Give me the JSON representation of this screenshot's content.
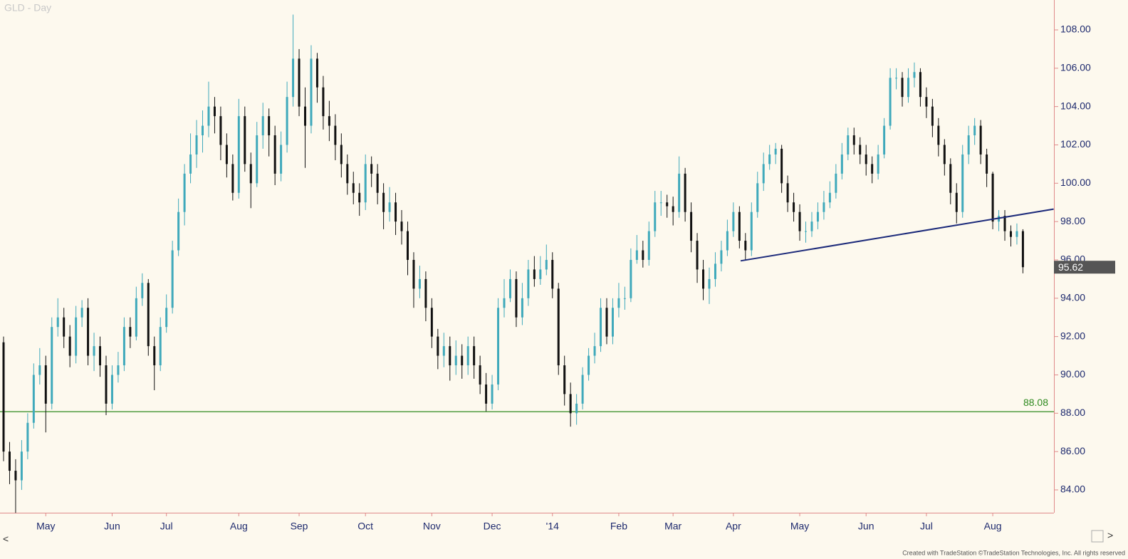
{
  "chart_data": {
    "type": "candlestick",
    "title": "GLD - Day",
    "footer": "Created with TradeStation  ©TradeStation Technologies, Inc. All rights reserved",
    "nav": {
      "left": "<",
      "right": ">"
    },
    "up_color": "#3fa9bb",
    "down_color": "#111111",
    "ylim": [
      82.81,
      109.56
    ],
    "yticks": [
      {
        "value": 84,
        "label": "84.00"
      },
      {
        "value": 86,
        "label": "86.00"
      },
      {
        "value": 88,
        "label": "88.00"
      },
      {
        "value": 90,
        "label": "90.00"
      },
      {
        "value": 92,
        "label": "92.00"
      },
      {
        "value": 94,
        "label": "94.00"
      },
      {
        "value": 96,
        "label": "96.00"
      },
      {
        "value": 98,
        "label": "98.00"
      },
      {
        "value": 100,
        "label": "100.00"
      },
      {
        "value": 102,
        "label": "102.00"
      },
      {
        "value": 104,
        "label": "104.00"
      },
      {
        "value": 106,
        "label": "106.00"
      },
      {
        "value": 108,
        "label": "108.00"
      }
    ],
    "support_level": {
      "value": 88.08,
      "label": "88.08",
      "color": "#2f8a1f"
    },
    "trendline": {
      "start": [
        122.2,
        95.95
      ],
      "end": [
        174.1,
        98.65
      ],
      "color": "#1c2a7a"
    },
    "last_price_color": "#555555",
    "categories": [
      null,
      null,
      null,
      null,
      null,
      null,
      null,
      "May",
      null,
      null,
      null,
      null,
      null,
      null,
      null,
      null,
      null,
      null,
      "Jun",
      null,
      null,
      null,
      null,
      null,
      null,
      null,
      null,
      "Jul",
      null,
      null,
      null,
      null,
      null,
      null,
      null,
      null,
      null,
      null,
      null,
      "Aug",
      null,
      null,
      null,
      null,
      null,
      null,
      null,
      null,
      null,
      "Sep",
      null,
      null,
      null,
      null,
      null,
      null,
      null,
      null,
      null,
      null,
      "Oct",
      null,
      null,
      null,
      null,
      null,
      null,
      null,
      null,
      null,
      null,
      "Nov",
      null,
      null,
      null,
      null,
      null,
      null,
      null,
      null,
      null,
      "Dec",
      null,
      null,
      null,
      null,
      null,
      null,
      null,
      null,
      null,
      "'14",
      null,
      null,
      null,
      null,
      null,
      null,
      null,
      null,
      null,
      null,
      "Feb",
      null,
      null,
      null,
      null,
      null,
      null,
      null,
      null,
      "Mar",
      null,
      null,
      null,
      null,
      null,
      null,
      null,
      null,
      null,
      "Apr",
      null,
      null,
      null,
      null,
      null,
      null,
      null,
      null,
      null,
      null,
      "May",
      null,
      null,
      null,
      null,
      null,
      null,
      null,
      null,
      null,
      null,
      "Jun",
      null,
      null,
      null,
      null,
      null,
      null,
      null,
      null,
      null,
      "Jul",
      null,
      null,
      null,
      null,
      null,
      null,
      null,
      null,
      null,
      null,
      "Aug",
      null,
      null,
      null,
      null,
      null
    ],
    "open": [
      91.7,
      86,
      85,
      84.5,
      86,
      87.5,
      90,
      90.5,
      88.5,
      92.5,
      93,
      92,
      91,
      93,
      93.5,
      91,
      91.5,
      90.5,
      88.5,
      90,
      90.5,
      92.5,
      92,
      94,
      94.8,
      91.5,
      90.5,
      92.5,
      93.5,
      96.5,
      98.5,
      100.5,
      101.5,
      102.5,
      103,
      104,
      103.5,
      102,
      101,
      99.5,
      103.5,
      101,
      100,
      102.5,
      103.5,
      102.5,
      100.5,
      102,
      104.5,
      106.5,
      104,
      103,
      106.5,
      105,
      103.5,
      103,
      102,
      101,
      100,
      99.5,
      99,
      101,
      100.5,
      99.5,
      98.5,
      99,
      98,
      97.5,
      96,
      94.5,
      95,
      93.5,
      92,
      91,
      91.5,
      90.5,
      91,
      90.5,
      91.5,
      90.5,
      89.5,
      88.5,
      89.5,
      93.5,
      94,
      95,
      93,
      94,
      95.5,
      95,
      95.5,
      96,
      94.5,
      90.5,
      89,
      88,
      88.5,
      90,
      91,
      91.5,
      93.5,
      92,
      93.5,
      94,
      94,
      96,
      96.5,
      96,
      97.5,
      99,
      99,
      98.8,
      98.5,
      100.5,
      98.5,
      97,
      95.5,
      94.5,
      95,
      95.8,
      96.5,
      97.5,
      98.5,
      97,
      96.5,
      98.5,
      100,
      101,
      101.5,
      101.8,
      100,
      99,
      98.5,
      97.5,
      97.5,
      98,
      98.5,
      99,
      99.5,
      100.5,
      101.5,
      102.5,
      102,
      101.5,
      101,
      100.5,
      101.5,
      103,
      105.5,
      105.5,
      104.5,
      105.5,
      105.8,
      104.5,
      104,
      103,
      102,
      101,
      99.5,
      98.5,
      101.5,
      102.5,
      103,
      101.5,
      100.5,
      98,
      98.3,
      97.5,
      97.2,
      97.5
    ],
    "high": [
      92,
      86.5,
      85.6,
      86.6,
      88,
      90.6,
      91.4,
      91,
      93,
      94,
      93.5,
      92.6,
      93.6,
      93.9,
      94,
      92.2,
      92,
      91,
      90.5,
      91.2,
      93,
      93,
      94.6,
      95.3,
      95,
      92,
      93,
      94.2,
      97,
      99.2,
      101,
      102.6,
      103.3,
      103.8,
      105.3,
      104.5,
      104,
      102.6,
      101.5,
      104.4,
      104,
      101.6,
      103.2,
      104.2,
      103.9,
      103,
      102.7,
      105.3,
      108.8,
      107,
      105,
      107.2,
      106.8,
      105.6,
      104.3,
      103.6,
      102.6,
      101.5,
      100.6,
      100,
      101.5,
      101.4,
      101,
      100,
      99.8,
      99.5,
      98.6,
      98,
      96.4,
      95.7,
      95.4,
      94,
      92.4,
      92.2,
      92,
      91.8,
      91.6,
      92,
      92,
      91,
      90.1,
      90,
      94,
      95,
      95.5,
      95.4,
      94.8,
      96,
      96.2,
      96.2,
      96.8,
      96.4,
      94.8,
      91,
      89.6,
      89,
      90.4,
      91.4,
      92.2,
      94,
      94,
      94,
      94.8,
      94.6,
      96.6,
      97.3,
      97,
      98,
      99.6,
      99.6,
      99.4,
      99.3,
      101.4,
      100.8,
      99,
      97.4,
      96,
      95.6,
      96.4,
      97,
      98.1,
      99,
      98.8,
      97.4,
      99,
      100.6,
      101.6,
      102,
      102.1,
      102,
      100.4,
      99.5,
      98.9,
      98,
      98.5,
      99,
      99.6,
      100.1,
      101,
      102.1,
      102.9,
      102.9,
      102.4,
      102,
      101.4,
      102,
      103.4,
      106,
      106,
      105.8,
      106,
      106.3,
      106,
      105,
      104.4,
      103.4,
      102.3,
      101.3,
      100,
      102,
      103,
      103.4,
      103.3,
      101.8,
      100.6,
      98.6,
      98.6,
      97.8,
      97.9,
      97.6
    ],
    "low": [
      85.5,
      84.3,
      82.8,
      84,
      85.6,
      87.2,
      89.5,
      87,
      88.2,
      92,
      91.4,
      90.4,
      90.6,
      92.5,
      90.5,
      90.2,
      89.9,
      87.9,
      88.2,
      89.6,
      90.2,
      91.4,
      91.8,
      93.6,
      91,
      89.2,
      90.2,
      92.2,
      93.2,
      96.2,
      97.8,
      100,
      100.8,
      101.6,
      102.4,
      102.6,
      101.2,
      100.3,
      99.1,
      99.2,
      100.6,
      98.7,
      99.8,
      101.8,
      101.4,
      99.9,
      100.1,
      101.6,
      104,
      103.5,
      100.8,
      102.6,
      104.2,
      102.8,
      102.2,
      101.2,
      100.3,
      99.4,
      98.9,
      98.3,
      98.6,
      99.8,
      98.9,
      97.6,
      98,
      97.3,
      96.8,
      95.2,
      93.5,
      94,
      92.8,
      91.4,
      90.3,
      90.4,
      89.7,
      90,
      89.8,
      90,
      89.8,
      89,
      88.1,
      88.2,
      89.2,
      93,
      93.8,
      92.5,
      92.6,
      93.6,
      94.6,
      94.7,
      95.2,
      94,
      90,
      88.4,
      87.3,
      87.4,
      88.2,
      89.7,
      90.6,
      91.2,
      91.6,
      91.6,
      93,
      93.4,
      93.8,
      95.8,
      95.6,
      95.7,
      97.2,
      98.3,
      98.2,
      97.8,
      98.2,
      98,
      96.4,
      94.8,
      93.9,
      93.7,
      94.6,
      95.4,
      96.2,
      97.2,
      96.6,
      96,
      96.2,
      98.2,
      99.6,
      100.7,
      101,
      99.5,
      98.5,
      98,
      97,
      96.9,
      97.2,
      97.6,
      98.1,
      98.7,
      99.2,
      100.2,
      101.2,
      101.5,
      101,
      100.4,
      100,
      100.2,
      101.3,
      102.8,
      104.9,
      104,
      104.2,
      105,
      104,
      103.4,
      102.4,
      101.4,
      100.4,
      98.9,
      97.9,
      98.2,
      101,
      102,
      101,
      99.8,
      97.6,
      97.5,
      97,
      96.7,
      96.8,
      95.3
    ],
    "close": [
      86,
      85,
      84.5,
      86,
      87.5,
      90,
      90.5,
      88.5,
      92.5,
      93,
      92,
      91,
      93,
      93.5,
      91,
      91.5,
      90.5,
      88.5,
      90,
      90.5,
      92.5,
      92,
      94,
      94.8,
      91.5,
      90.5,
      92.5,
      93.5,
      96.5,
      98.5,
      100.5,
      101.5,
      102.5,
      103,
      104,
      103.5,
      102,
      101,
      99.5,
      103.5,
      101,
      100,
      102.5,
      103.5,
      102.5,
      100.5,
      102,
      104.5,
      106.5,
      104,
      103,
      106.5,
      105,
      103.5,
      103,
      102,
      101,
      100,
      99.5,
      99,
      101,
      100.5,
      99.5,
      98.5,
      99,
      98,
      97.5,
      96,
      94.5,
      95,
      93.5,
      92,
      91,
      91.5,
      90.5,
      91,
      90.5,
      91.5,
      90.5,
      89.5,
      88.5,
      89.5,
      93.5,
      94,
      95,
      93,
      94,
      95.5,
      95,
      95.5,
      96,
      94.5,
      90.5,
      89,
      88,
      88.5,
      90,
      91,
      91.5,
      93.5,
      92,
      93.5,
      94,
      94,
      96,
      96.5,
      96,
      97.5,
      99,
      99,
      98.8,
      98.5,
      100.5,
      98.5,
      97,
      95.5,
      94.5,
      95,
      95.8,
      96.5,
      97.5,
      98.5,
      97,
      96.5,
      98.5,
      100,
      101,
      101.5,
      101.8,
      100,
      99,
      98.5,
      97.5,
      97.5,
      98,
      98.5,
      99,
      99.5,
      100.5,
      101.5,
      102.5,
      102,
      101.5,
      101,
      100.5,
      101.5,
      103,
      105.5,
      105.5,
      104.5,
      105.5,
      105.8,
      104.5,
      104,
      103,
      102,
      101,
      99.5,
      98.5,
      101.5,
      102.5,
      103,
      101.5,
      100.5,
      98,
      98.3,
      97.5,
      97.2,
      97.5,
      95.62
    ]
  }
}
